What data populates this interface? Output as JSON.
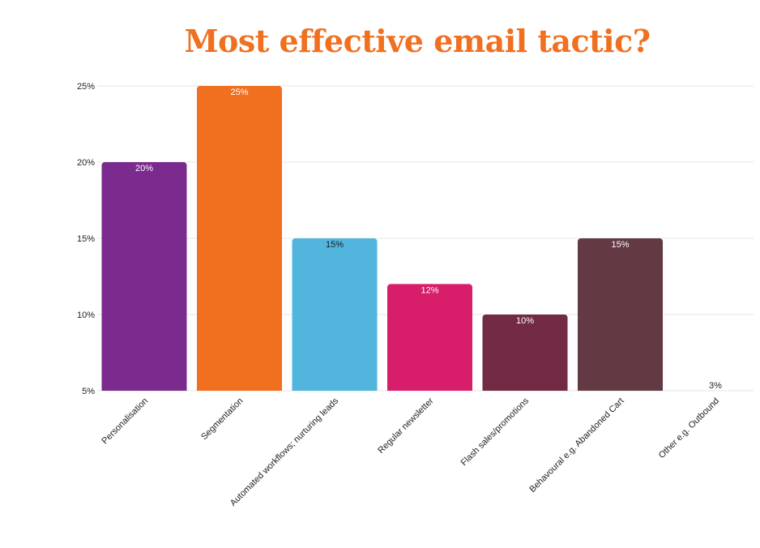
{
  "chart_data": {
    "type": "bar",
    "title": "Most effective email tactic?",
    "title_color": "#F07020",
    "categories": [
      "Personalisation",
      "Segmentation",
      "Automated workflows; nurturing leads",
      "Regular newsletter",
      "Flash sales/promotions",
      "Behavoural e.g. Abandoned Cart",
      "Other e.g. Outbound"
    ],
    "values": [
      20,
      25,
      15,
      12,
      10,
      15,
      3
    ],
    "value_labels": [
      "20%",
      "25%",
      "15%",
      "12%",
      "10%",
      "15%",
      "3%"
    ],
    "colors": [
      "#7B2A8E",
      "#F07020",
      "#52B5DE",
      "#D81E6A",
      "#732A45",
      "#633944",
      "#633944"
    ],
    "ylim": [
      5,
      25
    ],
    "yticks": [
      5,
      10,
      15,
      20,
      25
    ],
    "ytick_labels": [
      "5%",
      "10%",
      "15%",
      "20%",
      "25%"
    ],
    "grid": true,
    "legend": "none",
    "xlabel": "",
    "ylabel": ""
  }
}
